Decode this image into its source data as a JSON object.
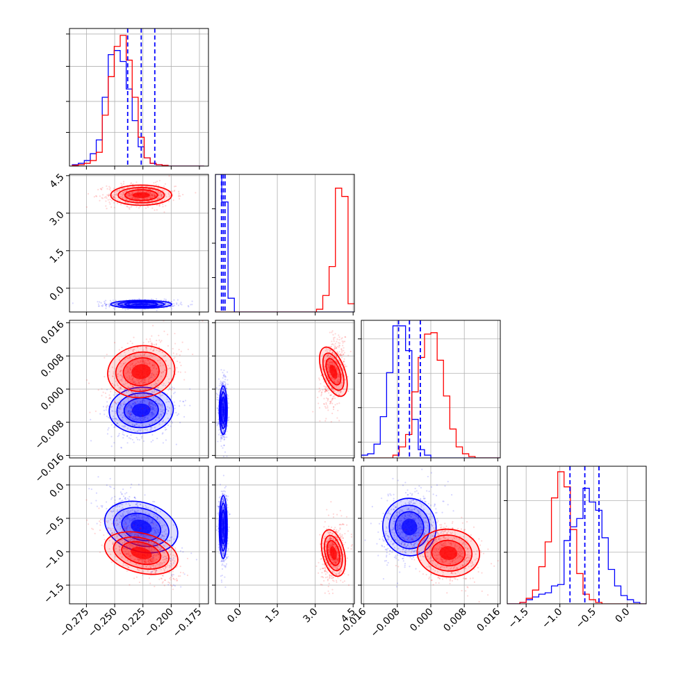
{
  "chart_data": {
    "type": "scatter",
    "kind": "corner-plot",
    "grid": true,
    "series": [
      {
        "color": "#0000ff"
      },
      {
        "color": "#ff0000"
      }
    ],
    "parameters": [
      {
        "ticks": [
          -0.275,
          -0.25,
          -0.225,
          -0.2,
          -0.175
        ],
        "tick_labels": [
          "−0.275",
          "−0.250",
          "−0.225",
          "−0.200",
          "−0.175"
        ],
        "range": [
          -0.29,
          -0.167
        ]
      },
      {
        "ticks": [
          0.0,
          1.5,
          3.0,
          4.5
        ],
        "tick_labels": [
          "0.0",
          "1.5",
          "3.0",
          "4.5"
        ],
        "range": [
          -0.95,
          4.55
        ]
      },
      {
        "ticks": [
          -0.016,
          -0.008,
          0.0,
          0.008,
          0.016
        ],
        "tick_labels": [
          "−0.016",
          "−0.008",
          "0.000",
          "0.008",
          "0.016"
        ],
        "range": [
          -0.0166,
          0.0166
        ]
      },
      {
        "ticks": [
          -1.5,
          -1.0,
          -0.5,
          0.0
        ],
        "tick_labels": [
          "−1.5",
          "−1.0",
          "−0.5",
          "0.0"
        ],
        "range": [
          -1.78,
          0.28
        ]
      }
    ],
    "quantiles": {
      "blue": [
        [
          -0.2385,
          -0.2265,
          -0.2145
        ],
        [
          -0.71,
          -0.64,
          -0.57
        ],
        [
          -0.0077,
          -0.0051,
          -0.0025
        ],
        [
          -0.85,
          -0.63,
          -0.42
        ]
      ]
    },
    "gaussians": {
      "blue": {
        "mean": [
          -0.2265,
          -0.64,
          -0.0051,
          -0.63
        ],
        "sd": [
          0.012,
          0.07,
          0.0026,
          0.21
        ]
      },
      "red": {
        "mean": [
          -0.2265,
          3.72,
          0.0042,
          -1.02
        ],
        "sd": [
          0.012,
          0.18,
          0.0031,
          0.17
        ]
      }
    },
    "histograms": {
      "p0": {
        "x0": -0.2875,
        "dx": 0.0053,
        "blue": [
          0.01,
          0.02,
          0.04,
          0.09,
          0.19,
          0.5,
          0.81,
          0.84,
          0.76,
          0.56,
          0.33,
          0.14,
          0.06,
          0.02,
          0.01,
          0.005,
          0,
          0,
          0,
          0,
          0,
          0
        ],
        "red": [
          0.005,
          0.01,
          0.02,
          0.04,
          0.1,
          0.37,
          0.65,
          0.87,
          0.95,
          0.77,
          0.5,
          0.21,
          0.06,
          0.02,
          0.01,
          0.005,
          0,
          0,
          0,
          0,
          0,
          0
        ]
      },
      "p1": {
        "x0": -0.95,
        "dx": 0.25,
        "blue": [
          1.0,
          0.8,
          0.1,
          0,
          0,
          0,
          0,
          0,
          0,
          0,
          0,
          0,
          0,
          0,
          0,
          0,
          0,
          0,
          0,
          0,
          0,
          0
        ],
        "red": [
          0,
          0,
          0,
          0,
          0,
          0,
          0,
          0,
          0,
          0,
          0,
          0,
          0,
          0,
          0,
          0,
          0.02,
          0.12,
          0.33,
          0.9,
          0.84,
          0.06
        ]
      },
      "p2": {
        "x0": -0.0166,
        "dx": 0.00151,
        "blue": [
          0.02,
          0.03,
          0.1,
          0.3,
          0.62,
          0.96,
          0.96,
          0.78,
          0.28,
          0.06,
          0.02,
          0,
          0,
          0,
          0,
          0,
          0,
          0,
          0,
          0,
          0,
          0
        ],
        "red": [
          0,
          0,
          0,
          0,
          0,
          0.02,
          0.08,
          0.17,
          0.48,
          0.73,
          0.9,
          0.91,
          0.71,
          0.45,
          0.21,
          0.08,
          0.03,
          0.01,
          0,
          0,
          0,
          0
        ]
      },
      "p3": {
        "x0": -1.78,
        "dx": 0.0936,
        "blue": [
          0,
          0,
          0.01,
          0.03,
          0.05,
          0.07,
          0.08,
          0.13,
          0.14,
          0.46,
          0.56,
          0.62,
          0.84,
          0.74,
          0.68,
          0.48,
          0.25,
          0.13,
          0.06,
          0.03,
          0.01,
          0
        ],
        "red": [
          0,
          0,
          0.01,
          0.04,
          0.1,
          0.27,
          0.45,
          0.77,
          0.96,
          0.85,
          0.54,
          0.22,
          0.07,
          0.03,
          0.01,
          0,
          0,
          0,
          0,
          0,
          0,
          0
        ]
      }
    }
  }
}
